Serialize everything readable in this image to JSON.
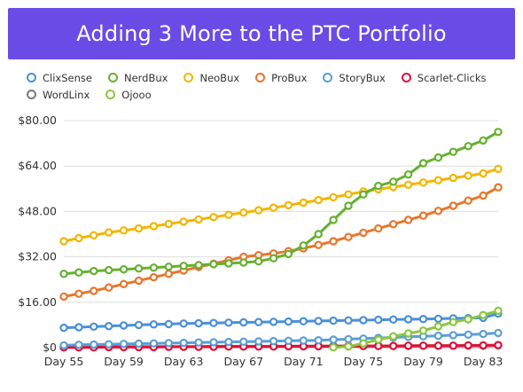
{
  "header": {
    "title": "Adding 3 More to the PTC Portfolio"
  },
  "chart_data": {
    "type": "line",
    "title": "Adding 3 More to the PTC Portfolio",
    "xlabel": "",
    "ylabel": "",
    "x_start_day": 55,
    "x_end_day": 84,
    "xticks": [
      "Day 55",
      "Day 59",
      "Day 63",
      "Day 67",
      "Day 71",
      "Day 75",
      "Day 79",
      "Day 83"
    ],
    "yticks": [
      "$0",
      "$16.00",
      "$32.00",
      "$48.00",
      "$64.00",
      "$80.00"
    ],
    "ylim": [
      0,
      80
    ],
    "grid": "horizontal",
    "legend_position": "top",
    "series": [
      {
        "name": "ClixSense",
        "color": "#4a90d9",
        "values": [
          7.0,
          7.2,
          7.4,
          7.6,
          7.8,
          8.0,
          8.2,
          8.3,
          8.5,
          8.6,
          8.7,
          8.8,
          8.9,
          9.0,
          9.1,
          9.2,
          9.3,
          9.4,
          9.5,
          9.6,
          9.7,
          9.8,
          9.9,
          10.0,
          10.1,
          10.2,
          10.3,
          10.4,
          10.5,
          12.0
        ]
      },
      {
        "name": "NerdBux",
        "color": "#66b032",
        "values": [
          26.0,
          26.5,
          27.0,
          27.3,
          27.6,
          27.9,
          28.2,
          28.5,
          28.8,
          29.1,
          29.4,
          29.7,
          30.0,
          30.4,
          31.5,
          33.0,
          36.0,
          40.0,
          45.0,
          50.0,
          54.0,
          57.0,
          58.5,
          61.0,
          65.0,
          67.0,
          69.0,
          71.0,
          73.0,
          76.0
        ]
      },
      {
        "name": "NeoBux",
        "color": "#f2b600",
        "values": [
          37.5,
          38.6,
          39.6,
          40.6,
          41.3,
          42.0,
          42.8,
          43.6,
          44.4,
          45.2,
          46.0,
          46.8,
          47.6,
          48.4,
          49.3,
          50.2,
          51.1,
          52.0,
          53.0,
          54.0,
          55.0,
          55.8,
          56.6,
          57.4,
          58.2,
          59.0,
          59.8,
          60.6,
          61.4,
          63.0
        ]
      },
      {
        "name": "ProBux",
        "color": "#e8762d",
        "values": [
          18.0,
          19.0,
          20.0,
          21.2,
          22.4,
          23.6,
          24.8,
          26.0,
          27.2,
          28.4,
          29.6,
          30.8,
          32.0,
          32.6,
          33.2,
          34.0,
          35.0,
          36.2,
          37.5,
          39.0,
          40.5,
          42.0,
          43.5,
          45.0,
          46.5,
          48.2,
          50.0,
          51.8,
          53.6,
          56.5
        ]
      },
      {
        "name": "StoryBux",
        "color": "#5a9fd4",
        "values": [
          0.8,
          1.0,
          1.1,
          1.2,
          1.3,
          1.4,
          1.5,
          1.6,
          1.7,
          1.8,
          1.9,
          2.0,
          2.1,
          2.2,
          2.3,
          2.4,
          2.5,
          2.6,
          2.8,
          3.0,
          3.2,
          3.4,
          3.6,
          3.8,
          4.0,
          4.2,
          4.4,
          4.6,
          4.8,
          5.2
        ]
      },
      {
        "name": "Scarlet-Clicks",
        "color": "#e0103a",
        "values": [
          0.1,
          0.1,
          0.1,
          0.2,
          0.2,
          0.2,
          0.2,
          0.3,
          0.3,
          0.3,
          0.3,
          0.4,
          0.4,
          0.4,
          0.4,
          0.5,
          0.5,
          0.5,
          0.5,
          0.6,
          0.6,
          0.6,
          0.6,
          0.7,
          0.7,
          0.7,
          0.7,
          0.8,
          0.8,
          0.9
        ]
      },
      {
        "name": "WordLinx",
        "color": "#7a7a7a",
        "values": [
          0.3,
          0.3,
          0.3,
          0.3,
          0.4,
          0.4,
          0.4,
          0.4,
          0.4,
          0.4,
          0.5,
          0.5,
          0.5,
          0.5,
          0.5,
          0.5,
          0.5,
          0.6,
          0.6,
          0.6,
          0.6,
          0.6,
          0.6,
          0.6,
          0.7,
          0.7,
          0.7,
          0.7,
          0.7,
          0.8
        ]
      },
      {
        "name": "Ojooo",
        "color": "#8cc63f",
        "values": [
          null,
          null,
          null,
          null,
          null,
          null,
          null,
          null,
          null,
          null,
          null,
          null,
          null,
          null,
          null,
          null,
          null,
          null,
          0.1,
          0.4,
          1.5,
          2.8,
          4.0,
          5.0,
          6.0,
          7.5,
          9.0,
          10.0,
          11.5,
          13.0
        ]
      }
    ]
  }
}
